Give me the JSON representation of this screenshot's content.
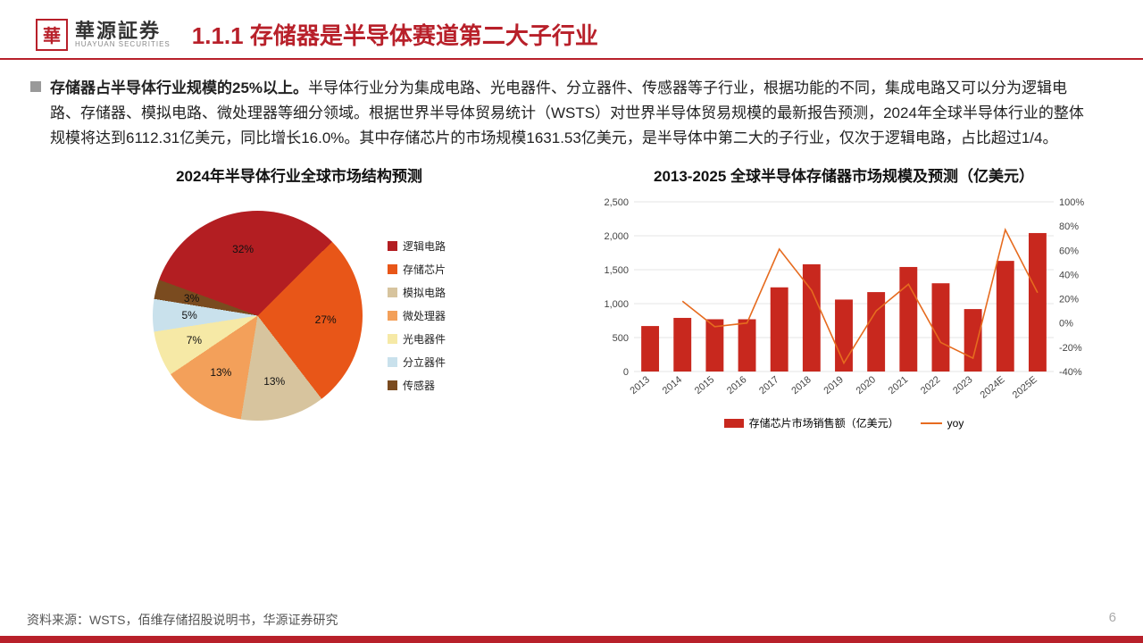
{
  "logo": {
    "cn": "華源証券",
    "en": "HUAYUAN SECURITIES",
    "icon": "華"
  },
  "title": "1.1.1 存储器是半导体赛道第二大子行业",
  "body_bold": "存储器占半导体行业规模的25%以上。",
  "body_rest": "半导体行业分为集成电路、光电器件、分立器件、传感器等子行业，根据功能的不同，集成电路又可以分为逻辑电路、存储器、模拟电路、微处理器等细分领域。根据世界半导体贸易统计（WSTS）对世界半导体贸易规模的最新报告预测，2024年全球半导体行业的整体规模将达到6112.31亿美元，同比增长16.0%。其中存储芯片的市场规模1631.53亿美元，是半导体中第二大的子行业，仅次于逻辑电路，占比超过1/4。",
  "pie": {
    "title": "2024年半导体行业全球市场结构预测",
    "slices": [
      {
        "label": "逻辑电路",
        "value": 32,
        "color": "#b31e22"
      },
      {
        "label": "存储芯片",
        "value": 27,
        "color": "#e85618"
      },
      {
        "label": "模拟电路",
        "value": 13,
        "color": "#d7c49e"
      },
      {
        "label": "微处理器",
        "value": 13,
        "color": "#f3a05a"
      },
      {
        "label": "光电器件",
        "value": 7,
        "color": "#f6e9a6"
      },
      {
        "label": "分立器件",
        "value": 5,
        "color": "#c9e1ec"
      },
      {
        "label": "传感器",
        "value": 3,
        "color": "#7a4b1f"
      }
    ],
    "label_pcts": [
      "32%",
      "27%",
      "13%",
      "13%",
      "7%",
      "5%",
      "3%"
    ]
  },
  "combo": {
    "title": "2013-2025 全球半导体存储器市场规模及预测（亿美元）",
    "years": [
      "2013",
      "2014",
      "2015",
      "2016",
      "2017",
      "2018",
      "2019",
      "2020",
      "2021",
      "2022",
      "2023",
      "2024E",
      "2025E"
    ],
    "bars": [
      670,
      790,
      770,
      770,
      1240,
      1580,
      1060,
      1170,
      1540,
      1300,
      920,
      1630,
      2040
    ],
    "yoy": [
      null,
      18,
      -3,
      0,
      61,
      27,
      -33,
      10,
      32,
      -16,
      -29,
      77,
      25
    ],
    "bar_color": "#c8281e",
    "line_color": "#e66b1f",
    "ylim": [
      0,
      2500
    ],
    "ytick": 500,
    "y2lim": [
      -40,
      100
    ],
    "y2tick": 20,
    "legend_bar": "存储芯片市场销售额（亿美元）",
    "legend_line": "yoy",
    "grid_color": "#cccccc",
    "axis_fontsize": 11
  },
  "source": "资料来源：WSTS，佰维存储招股说明书，华源证券研究",
  "page": "6",
  "accent": "#b8202a"
}
